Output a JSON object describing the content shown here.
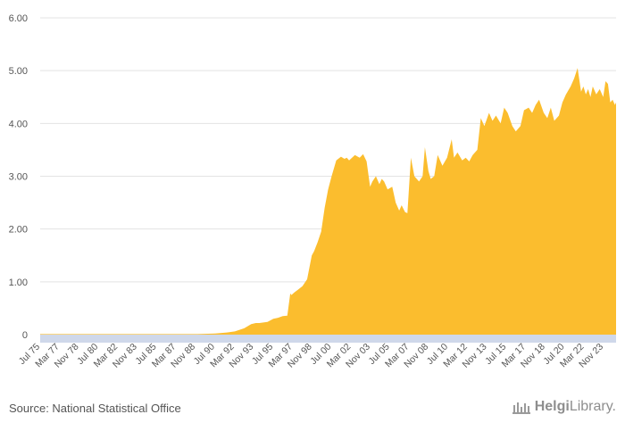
{
  "source_text": "Source: National Statistical Office",
  "brand": {
    "name_a": "Helgi",
    "name_b": "Library",
    "suffix": "."
  },
  "colors": {
    "area": "#fbbd2e",
    "axis_band": "#cfd8ea",
    "grid": "#e3e3e3",
    "text": "#555555"
  },
  "chart_data": {
    "type": "area",
    "title": "",
    "xlabel": "",
    "ylabel": "",
    "ylim": [
      0,
      6
    ],
    "xlim": [
      1975.5,
      2024.9
    ],
    "y_ticks": [
      {
        "value": 0,
        "label": "0"
      },
      {
        "value": 1,
        "label": "1.00"
      },
      {
        "value": 2,
        "label": "2.00"
      },
      {
        "value": 3,
        "label": "3.00"
      },
      {
        "value": 4,
        "label": "4.00"
      },
      {
        "value": 5,
        "label": "5.00"
      },
      {
        "value": 6,
        "label": "6.00"
      }
    ],
    "x_ticks": [
      {
        "t": 1975.5,
        "label": "Jul 75"
      },
      {
        "t": 1977.17,
        "label": "Mar 77"
      },
      {
        "t": 1978.83,
        "label": "Nov 78"
      },
      {
        "t": 1980.5,
        "label": "Jul 80"
      },
      {
        "t": 1982.17,
        "label": "Mar 82"
      },
      {
        "t": 1983.83,
        "label": "Nov 83"
      },
      {
        "t": 1985.5,
        "label": "Jul 85"
      },
      {
        "t": 1987.17,
        "label": "Mar 87"
      },
      {
        "t": 1988.83,
        "label": "Nov 88"
      },
      {
        "t": 1990.5,
        "label": "Jul 90"
      },
      {
        "t": 1992.17,
        "label": "Mar 92"
      },
      {
        "t": 1993.83,
        "label": "Nov 93"
      },
      {
        "t": 1995.5,
        "label": "Jul 95"
      },
      {
        "t": 1997.17,
        "label": "Mar 97"
      },
      {
        "t": 1998.83,
        "label": "Nov 98"
      },
      {
        "t": 2000.5,
        "label": "Jul 00"
      },
      {
        "t": 2002.17,
        "label": "Mar 02"
      },
      {
        "t": 2003.83,
        "label": "Nov 03"
      },
      {
        "t": 2005.5,
        "label": "Jul 05"
      },
      {
        "t": 2007.17,
        "label": "Mar 07"
      },
      {
        "t": 2008.83,
        "label": "Nov 08"
      },
      {
        "t": 2010.5,
        "label": "Jul 10"
      },
      {
        "t": 2012.17,
        "label": "Mar 12"
      },
      {
        "t": 2013.83,
        "label": "Nov 13"
      },
      {
        "t": 2015.5,
        "label": "Jul 15"
      },
      {
        "t": 2017.17,
        "label": "Mar 17"
      },
      {
        "t": 2018.83,
        "label": "Nov 18"
      },
      {
        "t": 2020.5,
        "label": "Jul 20"
      },
      {
        "t": 2022.17,
        "label": "Mar 22"
      },
      {
        "t": 2023.83,
        "label": "Nov 23"
      }
    ],
    "series": [
      {
        "name": "Value",
        "x": [
          1975.5,
          1980,
          1985,
          1989,
          1990.5,
          1991.5,
          1992.2,
          1993,
          1993.6,
          1994.0,
          1994.3,
          1995,
          1995.5,
          1995.9,
          1996.3,
          1996.7,
          1996.95,
          1997.05,
          1997.3,
          1997.6,
          1998.0,
          1998.4,
          1998.8,
          1999.0,
          1999.3,
          1999.6,
          1999.9,
          2000.2,
          2000.5,
          2000.9,
          2001.3,
          2001.6,
          2001.8,
          2002.0,
          2002.5,
          2002.9,
          2003.2,
          2003.5,
          2003.8,
          2004.0,
          2004.3,
          2004.6,
          2004.8,
          2005.0,
          2005.3,
          2005.7,
          2006.0,
          2006.3,
          2006.5,
          2006.8,
          2007.0,
          2007.3,
          2007.6,
          2008.0,
          2008.3,
          2008.5,
          2008.8,
          2009.0,
          2009.3,
          2009.6,
          2010.0,
          2010.4,
          2010.8,
          2011.0,
          2011.3,
          2011.7,
          2012.0,
          2012.3,
          2012.6,
          2013.0,
          2013.3,
          2013.6,
          2014.0,
          2014.3,
          2014.6,
          2015.0,
          2015.3,
          2015.6,
          2016.0,
          2016.3,
          2016.7,
          2017.0,
          2017.4,
          2017.7,
          2018.0,
          2018.3,
          2018.7,
          2019.0,
          2019.3,
          2019.6,
          2020.0,
          2020.3,
          2020.6,
          2021.0,
          2021.3,
          2021.6,
          2021.9,
          2022.1,
          2022.3,
          2022.5,
          2022.7,
          2022.9,
          2023.2,
          2023.5,
          2023.8,
          2024.0,
          2024.2,
          2024.4,
          2024.6,
          2024.8,
          2024.9
        ],
        "y": [
          0.01,
          0.01,
          0.01,
          0.01,
          0.02,
          0.04,
          0.06,
          0.12,
          0.2,
          0.22,
          0.22,
          0.24,
          0.3,
          0.32,
          0.35,
          0.36,
          0.78,
          0.75,
          0.8,
          0.85,
          0.92,
          1.05,
          1.5,
          1.58,
          1.75,
          1.95,
          2.4,
          2.75,
          3.0,
          3.3,
          3.37,
          3.33,
          3.35,
          3.3,
          3.4,
          3.35,
          3.42,
          3.28,
          2.8,
          2.9,
          3.0,
          2.85,
          2.95,
          2.9,
          2.75,
          2.8,
          2.5,
          2.35,
          2.45,
          2.32,
          2.3,
          3.35,
          3.0,
          2.9,
          3.0,
          3.55,
          3.1,
          2.95,
          3.0,
          3.4,
          3.2,
          3.35,
          3.7,
          3.35,
          3.45,
          3.3,
          3.35,
          3.28,
          3.4,
          3.5,
          4.1,
          3.95,
          4.2,
          4.05,
          4.15,
          4.0,
          4.3,
          4.2,
          3.95,
          3.85,
          3.95,
          4.25,
          4.3,
          4.2,
          4.35,
          4.45,
          4.2,
          4.1,
          4.3,
          4.05,
          4.15,
          4.4,
          4.55,
          4.7,
          4.85,
          5.05,
          4.6,
          4.7,
          4.55,
          4.65,
          4.5,
          4.7,
          4.55,
          4.65,
          4.5,
          4.8,
          4.75,
          4.4,
          4.45,
          4.35,
          4.4
        ]
      }
    ]
  }
}
